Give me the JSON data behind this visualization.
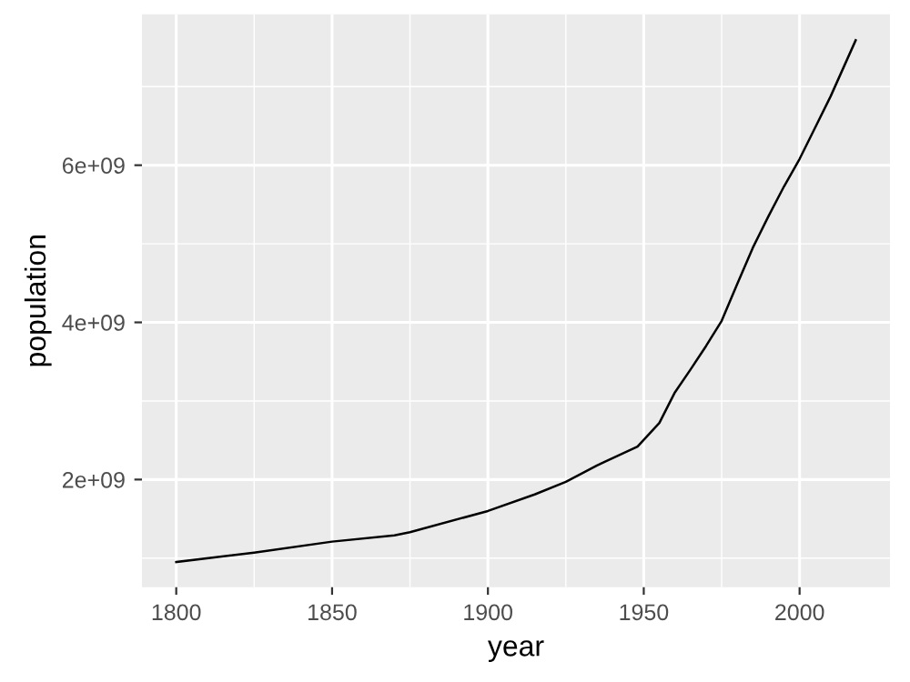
{
  "chart_data": {
    "type": "line",
    "xlabel": "year",
    "ylabel": "population",
    "x": [
      1800,
      1825,
      1850,
      1870,
      1875,
      1900,
      1915,
      1925,
      1935,
      1948,
      1955,
      1960,
      1965,
      1970,
      1975,
      1980,
      1985,
      1990,
      1995,
      2000,
      2005,
      2010,
      2018
    ],
    "series": [
      {
        "color": "#000000",
        "values": [
          950000000.0,
          1070000000.0,
          1210000000.0,
          1290000000.0,
          1330000000.0,
          1600000000.0,
          1810000000.0,
          1970000000.0,
          2180000000.0,
          2420000000.0,
          2720000000.0,
          3110000000.0,
          3400000000.0,
          3700000000.0,
          4020000000.0,
          4490000000.0,
          4950000000.0,
          5350000000.0,
          5730000000.0,
          6080000000.0,
          6480000000.0,
          6880000000.0,
          7590000000.0
        ]
      }
    ],
    "xlim": [
      1789,
      2029
    ],
    "xticks": [
      1800,
      1850,
      1900,
      1950,
      2000
    ],
    "ylim": [
      630000000.0,
      7920000000.0
    ],
    "yticks": [
      {
        "value": 2000000000.0,
        "label": "2e+09"
      },
      {
        "value": 4000000000.0,
        "label": "4e+09"
      },
      {
        "value": 6000000000.0,
        "label": "6e+09"
      }
    ],
    "grid": true,
    "line_style": "solid",
    "marker": "none"
  }
}
